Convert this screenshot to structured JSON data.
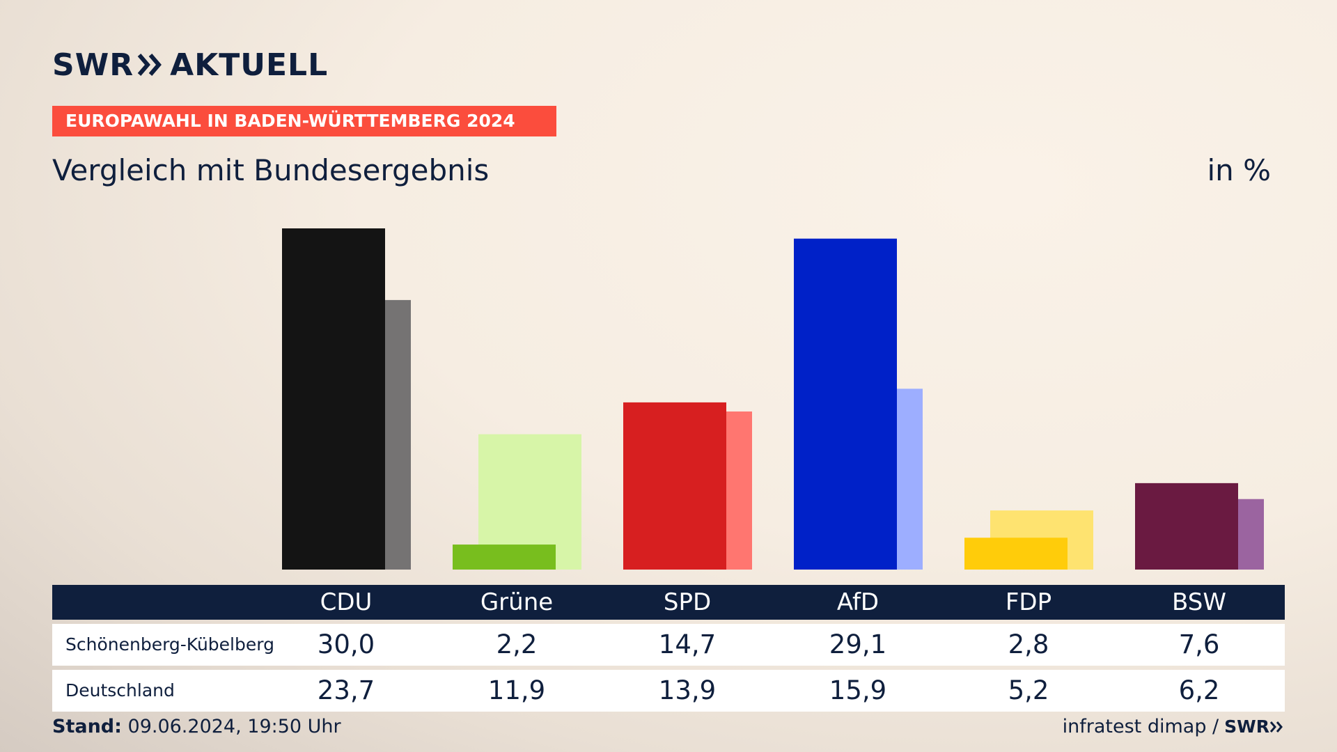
{
  "header": {
    "logo_left": "SWR",
    "logo_right": "AKTUELL",
    "category": "EUROPAWAHL IN BADEN-WÜRTTEMBERG 2024",
    "subtitle": "Vergleich mit Bundesergebnis",
    "unit": "in %"
  },
  "colors": {
    "brand_navy": "#0f1f3d",
    "banner_red": "#fb4d3d"
  },
  "chart_data": {
    "type": "bar",
    "categories": [
      "CDU",
      "Grüne",
      "SPD",
      "AfD",
      "FDP",
      "BSW"
    ],
    "series": [
      {
        "name": "Schönenberg-Kübelberg",
        "values": [
          30.0,
          2.2,
          14.7,
          29.1,
          2.8,
          7.6
        ],
        "labels": [
          "30,0",
          "2,2",
          "14,7",
          "29,1",
          "2,8",
          "7,6"
        ],
        "colors": [
          "#141414",
          "#78be1e",
          "#d71f20",
          "#0021c8",
          "#ffcc0a",
          "#6a1a41"
        ]
      },
      {
        "name": "Deutschland",
        "values": [
          23.7,
          11.9,
          13.9,
          15.9,
          5.2,
          6.2
        ],
        "labels": [
          "23,7",
          "11,9",
          "13,9",
          "15,9",
          "5,2",
          "6,2"
        ],
        "colors": [
          "#757373",
          "#d7f5a8",
          "#ff7670",
          "#9daeff",
          "#fee370",
          "#9b64a0"
        ]
      }
    ],
    "ylim": [
      0,
      30
    ],
    "grid": false,
    "legend": "table-below"
  },
  "footer": {
    "stand_label": "Stand:",
    "stand_value": "09.06.2024, 19:50 Uhr",
    "source": "infratest dimap /",
    "source_logo": "SWR"
  }
}
